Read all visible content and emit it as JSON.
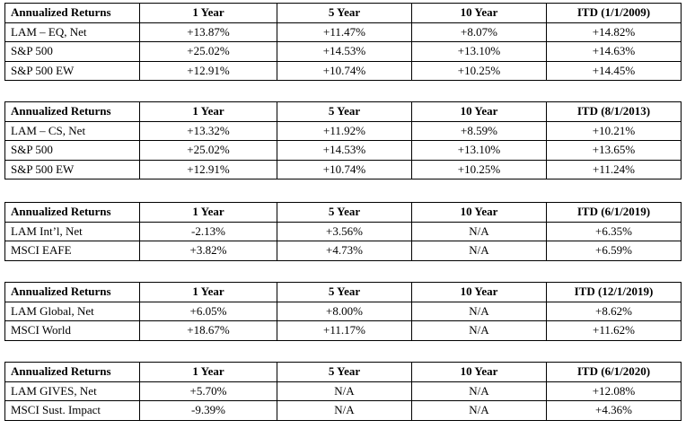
{
  "tables": [
    {
      "header": [
        "Annualized Returns",
        "1 Year",
        "5 Year",
        "10 Year",
        "ITD (1/1/2009)"
      ],
      "rows": [
        [
          "LAM – EQ, Net",
          "+13.87%",
          "+11.47%",
          "+8.07%",
          "+14.82%"
        ],
        [
          "S&P 500",
          "+25.02%",
          "+14.53%",
          "+13.10%",
          "+14.63%"
        ],
        [
          "S&P 500 EW",
          "+12.91%",
          "+10.74%",
          "+10.25%",
          "+14.45%"
        ]
      ]
    },
    {
      "header": [
        "Annualized Returns",
        "1 Year",
        "5 Year",
        "10 Year",
        "ITD (8/1/2013)"
      ],
      "rows": [
        [
          "LAM – CS, Net",
          "+13.32%",
          "+11.92%",
          "+8.59%",
          "+10.21%"
        ],
        [
          "S&P 500",
          "+25.02%",
          "+14.53%",
          "+13.10%",
          "+13.65%"
        ],
        [
          "S&P 500 EW",
          "+12.91%",
          "+10.74%",
          "+10.25%",
          "+11.24%"
        ]
      ]
    },
    {
      "header": [
        "Annualized Returns",
        "1 Year",
        "5 Year",
        "10 Year",
        "ITD (6/1/2019)"
      ],
      "rows": [
        [
          "LAM Int’l, Net",
          "-2.13%",
          "+3.56%",
          "N/A",
          "+6.35%"
        ],
        [
          "MSCI EAFE",
          "+3.82%",
          "+4.73%",
          "N/A",
          "+6.59%"
        ]
      ]
    },
    {
      "header": [
        "Annualized Returns",
        "1 Year",
        "5 Year",
        "10 Year",
        "ITD (12/1/2019)"
      ],
      "rows": [
        [
          "LAM Global, Net",
          "+6.05%",
          "+8.00%",
          "N/A",
          "+8.62%"
        ],
        [
          "MSCI World",
          "+18.67%",
          "+11.17%",
          "N/A",
          "+11.62%"
        ]
      ]
    },
    {
      "header": [
        "Annualized Returns",
        "1 Year",
        "5 Year",
        "10 Year",
        "ITD (6/1/2020)"
      ],
      "rows": [
        [
          "LAM GIVES, Net",
          "+5.70%",
          "N/A",
          "N/A",
          "+12.08%"
        ],
        [
          "MSCI Sust. Impact",
          "-9.39%",
          "N/A",
          "N/A",
          "+4.36%"
        ]
      ]
    }
  ]
}
